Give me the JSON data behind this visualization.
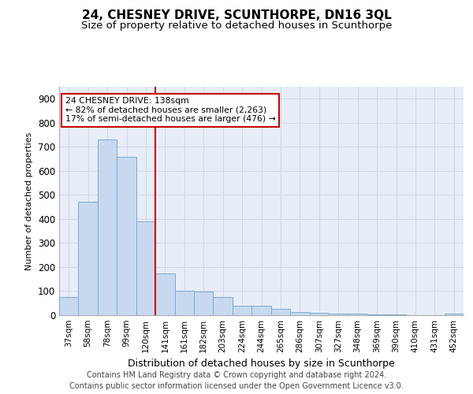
{
  "title": "24, CHESNEY DRIVE, SCUNTHORPE, DN16 3QL",
  "subtitle": "Size of property relative to detached houses in Scunthorpe",
  "xlabel": "Distribution of detached houses by size in Scunthorpe",
  "ylabel": "Number of detached properties",
  "categories": [
    "37sqm",
    "58sqm",
    "78sqm",
    "99sqm",
    "120sqm",
    "141sqm",
    "161sqm",
    "182sqm",
    "203sqm",
    "224sqm",
    "244sqm",
    "265sqm",
    "286sqm",
    "307sqm",
    "327sqm",
    "348sqm",
    "369sqm",
    "390sqm",
    "410sqm",
    "431sqm",
    "452sqm"
  ],
  "values": [
    75,
    472,
    730,
    660,
    390,
    175,
    100,
    97,
    75,
    40,
    40,
    27,
    13,
    11,
    8,
    5,
    3,
    2,
    0,
    0,
    5
  ],
  "bar_color": "#c8d9ef",
  "bar_edge_color": "#7aaad0",
  "vline_x_index": 4,
  "vline_color": "#cc0000",
  "annotation_title": "24 CHESNEY DRIVE: 138sqm",
  "annotation_line1": "← 82% of detached houses are smaller (2,263)",
  "annotation_line2": "17% of semi-detached houses are larger (476) →",
  "annotation_box_color": "#ffffff",
  "annotation_border_color": "#cc0000",
  "ylim": [
    0,
    950
  ],
  "yticks": [
    0,
    100,
    200,
    300,
    400,
    500,
    600,
    700,
    800,
    900
  ],
  "grid_color": "#d0d8e8",
  "background_color": "#e8eef8",
  "footer_line1": "Contains HM Land Registry data © Crown copyright and database right 2024.",
  "footer_line2": "Contains public sector information licensed under the Open Government Licence v3.0.",
  "title_fontsize": 11,
  "subtitle_fontsize": 9.5,
  "footer_fontsize": 7
}
